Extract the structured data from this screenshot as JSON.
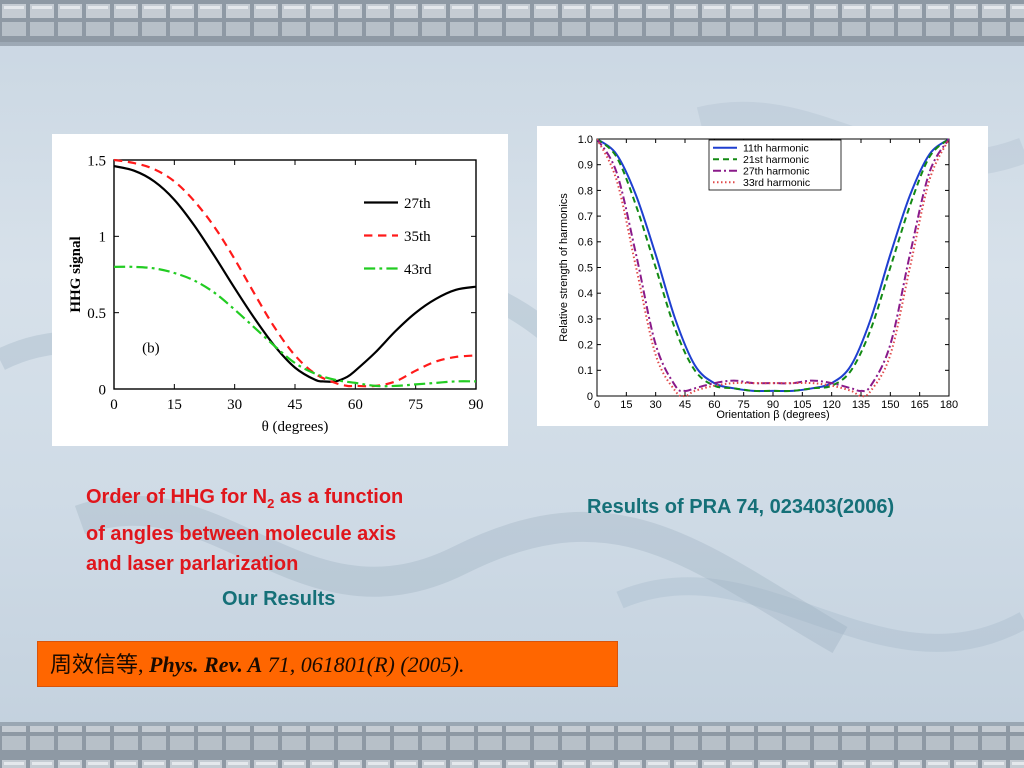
{
  "slide": {
    "caption_line1_pre": "Order of HHG for  N",
    "caption_sub": "2",
    "caption_line1_post": "  as a function",
    "caption_line2": "of angles between molecule axis",
    "caption_line3": "and laser parlarization",
    "our_results": "Our Results",
    "pra_results": "Results of PRA 74, 023403(2006)",
    "citation_authors": "周效信等",
    "citation_sep": ", ",
    "citation_journal": "Phys. Rev. A",
    "citation_details": "  71, 061801(R) (2005).",
    "colors": {
      "caption_red": "#e0161c",
      "caption_teal": "#157078",
      "citation_bg": "#ff6600"
    }
  },
  "chart_data": [
    {
      "type": "line",
      "title": "",
      "panel_label": "(b)",
      "xlabel": "θ (degrees)",
      "ylabel": "HHG signal",
      "xlim": [
        0,
        90
      ],
      "ylim": [
        0,
        1.5
      ],
      "xticks": [
        "0",
        "15",
        "30",
        "45",
        "60",
        "75",
        "90"
      ],
      "yticks": [
        "0",
        "0.5",
        "1",
        "1.5"
      ],
      "legend_position": "top-right",
      "series": [
        {
          "name": "27th",
          "color": "#000000",
          "style": "solid",
          "x": [
            0,
            5,
            10,
            15,
            20,
            25,
            30,
            35,
            40,
            45,
            50,
            52,
            55,
            58,
            60,
            65,
            70,
            75,
            80,
            85,
            90
          ],
          "y": [
            1.46,
            1.43,
            1.36,
            1.24,
            1.07,
            0.87,
            0.66,
            0.46,
            0.28,
            0.14,
            0.06,
            0.05,
            0.05,
            0.08,
            0.12,
            0.24,
            0.38,
            0.5,
            0.59,
            0.65,
            0.67
          ]
        },
        {
          "name": "35th",
          "color": "#ff1a1a",
          "style": "dashed",
          "x": [
            0,
            5,
            10,
            15,
            20,
            25,
            30,
            35,
            40,
            45,
            50,
            55,
            58,
            60,
            65,
            70,
            75,
            80,
            85,
            90
          ],
          "y": [
            1.5,
            1.48,
            1.44,
            1.36,
            1.23,
            1.06,
            0.85,
            0.62,
            0.4,
            0.22,
            0.1,
            0.04,
            0.02,
            0.02,
            0.02,
            0.05,
            0.12,
            0.18,
            0.21,
            0.22
          ]
        },
        {
          "name": "43rd",
          "color": "#22cc22",
          "style": "dashdot",
          "x": [
            0,
            5,
            10,
            15,
            20,
            25,
            30,
            35,
            40,
            45,
            50,
            55,
            60,
            65,
            70,
            75,
            80,
            85,
            90
          ],
          "y": [
            0.8,
            0.8,
            0.79,
            0.76,
            0.71,
            0.63,
            0.52,
            0.4,
            0.28,
            0.17,
            0.1,
            0.06,
            0.04,
            0.02,
            0.02,
            0.03,
            0.04,
            0.05,
            0.05
          ]
        }
      ]
    },
    {
      "type": "line",
      "title": "",
      "xlabel": "Orientation β (degrees)",
      "ylabel": "Relative strength of harmonics",
      "xlim": [
        0,
        180
      ],
      "ylim": [
        0,
        1.0
      ],
      "xticks": [
        "0",
        "15",
        "30",
        "45",
        "60",
        "75",
        "90",
        "105",
        "120",
        "135",
        "150",
        "165",
        "180"
      ],
      "yticks": [
        "0",
        "0.1",
        "0.2",
        "0.3",
        "0.4",
        "0.5",
        "0.6",
        "0.7",
        "0.8",
        "0.9",
        "1.0"
      ],
      "legend_position": "top-center",
      "series": [
        {
          "name": "11th harmonic",
          "color": "#1f3fd0",
          "style": "solid",
          "x": [
            0,
            10,
            20,
            30,
            40,
            50,
            60,
            70,
            80,
            90,
            100,
            110,
            120,
            130,
            140,
            150,
            160,
            170,
            180
          ],
          "y": [
            1.0,
            0.94,
            0.78,
            0.55,
            0.3,
            0.12,
            0.05,
            0.03,
            0.02,
            0.02,
            0.02,
            0.03,
            0.05,
            0.12,
            0.3,
            0.55,
            0.78,
            0.94,
            1.0
          ]
        },
        {
          "name": "21st harmonic",
          "color": "#138a13",
          "style": "dashed",
          "x": [
            0,
            10,
            20,
            30,
            40,
            50,
            60,
            70,
            80,
            90,
            100,
            110,
            120,
            130,
            140,
            150,
            160,
            170,
            180
          ],
          "y": [
            1.0,
            0.93,
            0.74,
            0.5,
            0.26,
            0.1,
            0.04,
            0.03,
            0.02,
            0.02,
            0.02,
            0.03,
            0.04,
            0.1,
            0.26,
            0.5,
            0.74,
            0.93,
            1.0
          ]
        },
        {
          "name": "27th harmonic",
          "color": "#8a1a8a",
          "style": "dashdot",
          "x": [
            0,
            10,
            20,
            30,
            40,
            45,
            50,
            60,
            70,
            80,
            90,
            100,
            110,
            120,
            130,
            135,
            140,
            150,
            160,
            170,
            180
          ],
          "y": [
            1.0,
            0.87,
            0.55,
            0.2,
            0.04,
            0.02,
            0.03,
            0.05,
            0.06,
            0.05,
            0.05,
            0.05,
            0.06,
            0.05,
            0.03,
            0.02,
            0.04,
            0.2,
            0.55,
            0.87,
            1.0
          ]
        },
        {
          "name": "33rd harmonic",
          "color": "#e04a4a",
          "style": "dotted",
          "x": [
            0,
            10,
            20,
            30,
            40,
            45,
            50,
            60,
            70,
            80,
            90,
            100,
            110,
            120,
            130,
            135,
            140,
            150,
            160,
            170,
            180
          ],
          "y": [
            1.0,
            0.84,
            0.5,
            0.16,
            0.02,
            0.0,
            0.02,
            0.04,
            0.05,
            0.05,
            0.05,
            0.05,
            0.05,
            0.04,
            0.02,
            0.0,
            0.02,
            0.16,
            0.5,
            0.84,
            1.0
          ]
        }
      ]
    }
  ]
}
